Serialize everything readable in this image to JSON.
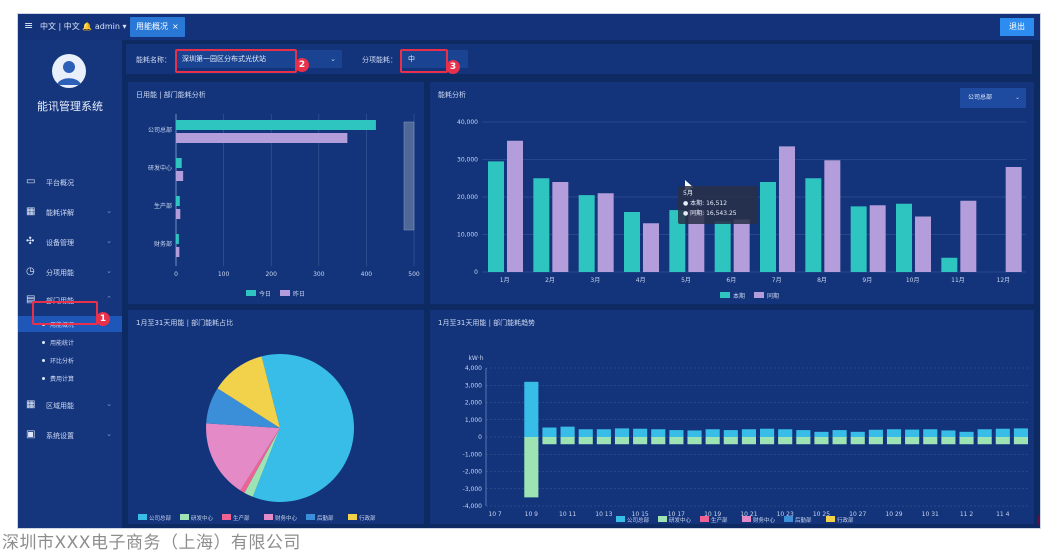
{
  "topbar": {
    "menu_icon": "≡",
    "user_text": "中文 | 中文",
    "bell_icon": "bell-icon",
    "admin": "admin ▾",
    "tab_label": "用能概况",
    "tab_close": "×",
    "logout_label": "退出"
  },
  "sidebar": {
    "brand": "能讯管理系统",
    "items": [
      {
        "label": "平台概况",
        "icon": "monitor-icon"
      },
      {
        "label": "能耗详解",
        "icon": "building-icon"
      },
      {
        "label": "设备管理",
        "icon": "network-icon"
      },
      {
        "label": "分项用能",
        "icon": "clock-icon"
      },
      {
        "label": "部门用能",
        "icon": "folder-icon"
      }
    ],
    "subitems": [
      "用能概况",
      "用能统计",
      "环比分析",
      "费用计算"
    ],
    "bottom_items": [
      {
        "label": "区域用能",
        "icon": "grid-icon"
      },
      {
        "label": "系统设置",
        "icon": "settings-icon"
      }
    ]
  },
  "filter": {
    "building_label": "能耗名称：",
    "building_value": "深圳第一园区分布式光伏站",
    "time_label": "分项能耗：",
    "time_value": "中"
  },
  "annotations": [
    "1",
    "2",
    "3"
  ],
  "panels": {
    "top_left_title": "日用能 | 部门能耗分析",
    "top_right_title": "能耗分析",
    "top_right_dropdown": "公司总部",
    "bottom_left_title": "1月至31天用能 | 部门能耗占比",
    "bottom_right_title": "1月至31天用能 | 部门能耗趋势"
  },
  "tooltip": {
    "month": "5月",
    "line1": "● 本期: 16,512",
    "line2": "● 同期: 16,543.25"
  },
  "colors": {
    "teal": "#2ec4c0",
    "purple": "#b39ddb",
    "cyan": "#38bde8",
    "green": "#9de3b4",
    "pink": "#f06292",
    "magenta": "#e38ac7",
    "blue": "#3b8fd8",
    "yellow": "#f2d14b",
    "annotation_red": "#e8304b"
  },
  "watermark": "深圳市XXX电子商务（上海）有限公司",
  "corner_badge": "0",
  "chart_data": [
    {
      "type": "bar",
      "orientation": "horizontal",
      "categories": [
        "公司总部",
        "研发中心",
        "生产部",
        "财务部"
      ],
      "series": [
        {
          "name": "今日",
          "values": [
            420,
            12,
            8,
            6
          ]
        },
        {
          "name": "昨日",
          "values": [
            360,
            15,
            9,
            7
          ]
        }
      ],
      "xlim": [
        0,
        500
      ],
      "xticks": [
        "0",
        "100",
        "200",
        "300",
        "400",
        "500"
      ]
    },
    {
      "type": "bar",
      "categories": [
        "1月",
        "2月",
        "3月",
        "4月",
        "5月",
        "6月",
        "7月",
        "8月",
        "9月",
        "10月",
        "11月",
        "12月"
      ],
      "series": [
        {
          "name": "本期",
          "values": [
            29500,
            25000,
            20500,
            16000,
            16512,
            13500,
            24000,
            25000,
            17500,
            18200,
            3800,
            0
          ]
        },
        {
          "name": "同期",
          "values": [
            35000,
            24000,
            21000,
            13000,
            16543.25,
            14000,
            33500,
            29800,
            17800,
            14800,
            19000,
            28000
          ]
        }
      ],
      "ylim": [
        0,
        40000
      ],
      "yticks": [
        "0",
        "10,000",
        "20,000",
        "30,000",
        "40,000"
      ]
    },
    {
      "type": "pie",
      "labels": [
        "公司总部",
        "研发中心",
        "生产部",
        "财务中心",
        "后勤部",
        "行政部"
      ],
      "values": [
        60,
        2,
        1,
        17,
        8,
        12
      ]
    },
    {
      "type": "bar",
      "stacked": true,
      "ylabel": "kW·h",
      "ylim": [
        -4000,
        4000
      ],
      "yticks": [
        "4,000",
        "3,000",
        "2,000",
        "1,000",
        "0",
        "-1,000",
        "-2,000",
        "-3,000",
        "-4,000"
      ],
      "categories": [
        "10 7",
        "10 8",
        "10 9",
        "10 10",
        "10 11",
        "10 12",
        "10 13",
        "10 14",
        "10 15",
        "10 16",
        "10 17",
        "10 18",
        "10 19",
        "10 20",
        "10 21",
        "10 22",
        "10 23",
        "10 24",
        "10 25",
        "10 26",
        "10 27",
        "10 28",
        "10 29",
        "10 30",
        "10 31",
        "11 1",
        "11 2",
        "11 3",
        "11 4",
        "11 5"
      ],
      "xticks": [
        "10 7",
        "10 9",
        "10 11",
        "10 13",
        "10 15",
        "10 17",
        "10 19",
        "10 21",
        "10 23",
        "10 25",
        "10 27",
        "10 29",
        "10 31",
        "11 2",
        "11 4",
        "11"
      ],
      "series": [
        {
          "name": "公司总部",
          "values": [
            0,
            0,
            3200,
            550,
            600,
            450,
            450,
            500,
            480,
            450,
            400,
            380,
            450,
            400,
            450,
            480,
            450,
            400,
            300,
            400,
            300,
            420,
            450,
            430,
            450,
            380,
            300,
            450,
            480,
            500
          ]
        },
        {
          "name": "研发中心",
          "values": [
            0,
            0,
            -3500,
            -420,
            -420,
            -420,
            -420,
            -420,
            -420,
            -420,
            -420,
            -420,
            -420,
            -420,
            -420,
            -420,
            -420,
            -420,
            -420,
            -420,
            -420,
            -420,
            -420,
            -420,
            -420,
            -420,
            -420,
            -420,
            -420,
            -420
          ]
        },
        {
          "name": "生产部",
          "values": [
            0,
            0,
            0,
            0,
            0,
            0,
            0,
            0,
            0,
            0,
            0,
            0,
            0,
            0,
            0,
            0,
            0,
            0,
            0,
            0,
            0,
            0,
            0,
            0,
            0,
            0,
            0,
            0,
            0,
            0
          ]
        },
        {
          "name": "财务中心",
          "values": [
            0,
            0,
            0,
            0,
            0,
            0,
            0,
            0,
            0,
            0,
            0,
            0,
            0,
            0,
            0,
            0,
            0,
            0,
            0,
            0,
            0,
            0,
            0,
            0,
            0,
            0,
            0,
            0,
            0,
            0
          ]
        },
        {
          "name": "后勤部",
          "values": [
            0,
            0,
            0,
            0,
            0,
            0,
            0,
            0,
            0,
            0,
            0,
            0,
            0,
            0,
            0,
            0,
            0,
            0,
            0,
            0,
            0,
            0,
            0,
            0,
            0,
            0,
            0,
            0,
            0,
            0
          ]
        },
        {
          "name": "行政部",
          "values": [
            0,
            0,
            0,
            0,
            0,
            0,
            0,
            0,
            0,
            0,
            0,
            0,
            0,
            0,
            0,
            0,
            0,
            0,
            0,
            0,
            0,
            0,
            0,
            0,
            0,
            0,
            0,
            0,
            0,
            0
          ]
        }
      ]
    }
  ]
}
